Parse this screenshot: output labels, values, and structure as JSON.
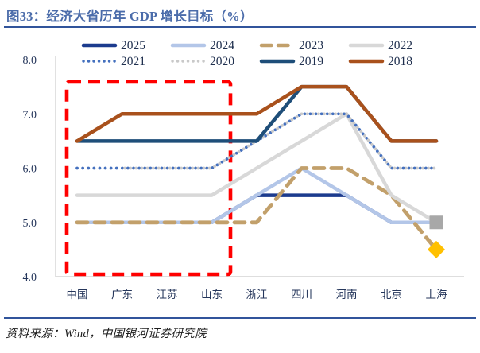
{
  "title": "图33：经济大省历年 GDP 增长目标（%）",
  "source": "资料来源：Wind，中国银河证券研究院",
  "colors": {
    "title_blue": "#4B6CAA",
    "rule_blue": "#31549B",
    "axis_text": "#25365B",
    "legend_text": "#20304F",
    "axis_line": "#D4D4D4",
    "highlight_red": "#FF0000",
    "marker_square_gray": "#A8A8A8",
    "marker_diamond_gold": "#FFC000"
  },
  "chart_data": {
    "type": "line",
    "title": "经济大省历年 GDP 增长目标（%）",
    "categories": [
      "中国",
      "广东",
      "江苏",
      "山东",
      "浙江",
      "四川",
      "河南",
      "北京",
      "上海"
    ],
    "y_ticks": [
      "8.0",
      "7.0",
      "6.0",
      "5.0",
      "4.0"
    ],
    "ylim": [
      4.0,
      8.0
    ],
    "grid": false,
    "legend_position": "top",
    "series": [
      {
        "name": "2025",
        "color": "#1C3B8E",
        "style": "solid",
        "values": [
          5.0,
          5.0,
          5.0,
          5.0,
          5.5,
          5.5,
          5.5,
          5.0,
          5.0
        ]
      },
      {
        "name": "2024",
        "color": "#B3C6E8",
        "style": "solid",
        "values": [
          5.0,
          5.0,
          5.0,
          5.0,
          5.5,
          6.0,
          5.5,
          5.0,
          5.0
        ]
      },
      {
        "name": "2023",
        "color": "#C2A06B",
        "style": "dashed",
        "values": [
          5.0,
          5.0,
          5.0,
          5.0,
          5.0,
          6.0,
          6.0,
          5.5,
          4.5
        ]
      },
      {
        "name": "2022",
        "color": "#D8D8D8",
        "style": "solid",
        "values": [
          5.5,
          5.5,
          5.5,
          5.5,
          6.0,
          6.5,
          7.0,
          5.5,
          5.0
        ]
      },
      {
        "name": "2021",
        "color": "#4470BE",
        "style": "dotted",
        "values": [
          6.0,
          6.0,
          6.0,
          6.0,
          6.5,
          7.0,
          7.0,
          6.0,
          6.0
        ]
      },
      {
        "name": "2020",
        "color": "#C9C9C9",
        "style": "dotted",
        "values": [
          null,
          6.0,
          6.0,
          6.0,
          6.5,
          7.0,
          7.0,
          6.0,
          6.0
        ]
      },
      {
        "name": "2019",
        "color": "#1E4E79",
        "style": "solid",
        "values": [
          6.5,
          6.5,
          6.5,
          6.5,
          6.5,
          7.5,
          7.5,
          6.5,
          6.5
        ]
      },
      {
        "name": "2018",
        "color": "#A9511C",
        "style": "solid",
        "values": [
          6.5,
          7.0,
          7.0,
          7.0,
          7.0,
          7.5,
          7.5,
          6.5,
          6.5
        ]
      }
    ],
    "end_markers": [
      {
        "shape": "square",
        "category": "上海",
        "value": 5.0,
        "color": "#A8A8A8"
      },
      {
        "shape": "diamond",
        "category": "上海",
        "value": 4.5,
        "color": "#FFC000"
      }
    ],
    "highlight_box": {
      "from": "中国",
      "to": "山东",
      "color": "#FF0000",
      "style": "dashed"
    }
  }
}
